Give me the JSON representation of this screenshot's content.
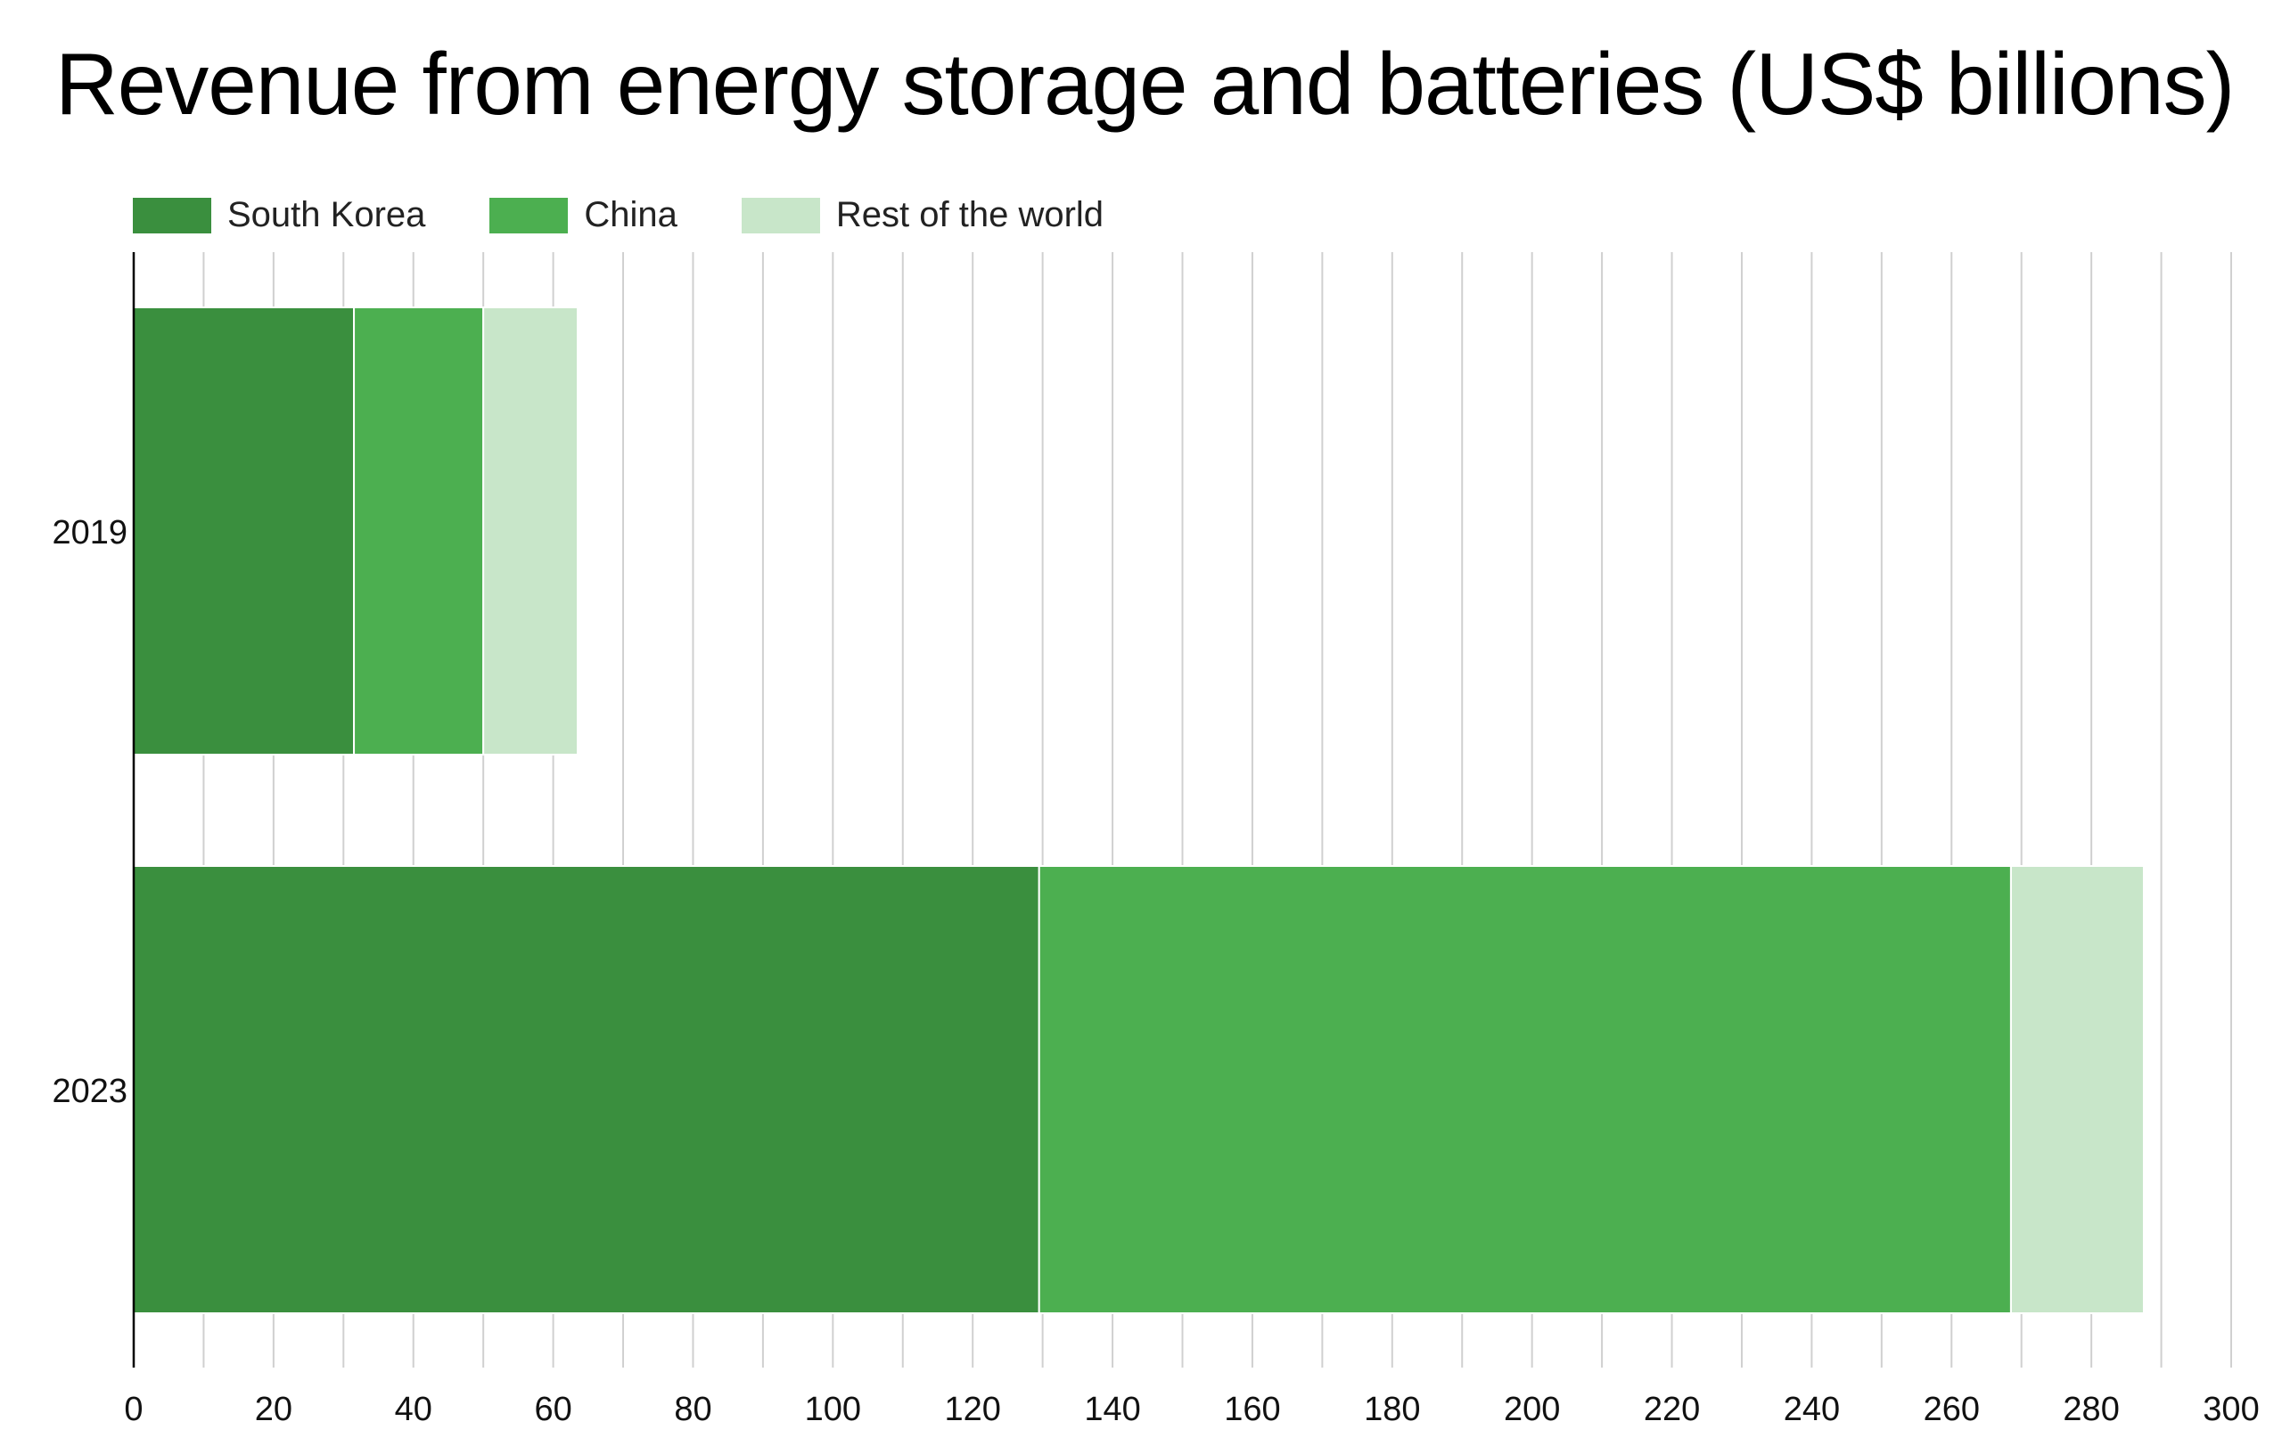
{
  "chart_data": {
    "type": "bar",
    "orientation": "horizontal",
    "stacked": true,
    "title": "Revenue from energy storage and batteries (US$ billions)",
    "categories": [
      "2019",
      "2023"
    ],
    "series": [
      {
        "name": "South Korea",
        "color": "#3a8f3e",
        "values": [
          31.5,
          129.5
        ]
      },
      {
        "name": "China",
        "color": "#4caf50",
        "values": [
          18.5,
          139
        ]
      },
      {
        "name": "Rest of the world",
        "color": "#c8e6c9",
        "values": [
          13.5,
          19
        ]
      }
    ],
    "xlim": [
      0,
      300
    ],
    "x_ticks": [
      "0",
      "20",
      "40",
      "60",
      "80",
      "100",
      "120",
      "140",
      "160",
      "180",
      "200",
      "220",
      "240",
      "260",
      "280",
      "300"
    ],
    "minor_grid_step": 10,
    "grid": true,
    "legend_position": "top-left",
    "xlabel": "",
    "ylabel": ""
  }
}
